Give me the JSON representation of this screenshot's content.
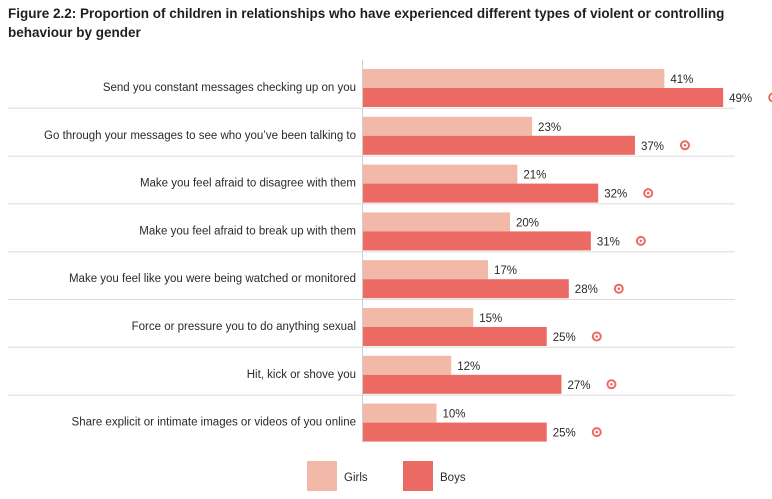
{
  "title": "Figure 2.2: Proportion of children in relationships who have experienced different types of violent or controlling behaviour by gender",
  "colors": {
    "girls": "#f2b8a8",
    "boys": "#eb6a63",
    "separator": "#dcdcdc",
    "axis": "#cfcfcf",
    "marker": "#eb6a63"
  },
  "chart_data": {
    "type": "bar",
    "orientation": "horizontal",
    "categories": [
      "Send you constant messages checking up on you",
      "Go through your messages to see who you’ve been talking to",
      "Make you feel afraid to disagree with them",
      "Make you feel afraid to break up with them",
      "Make you feel like you were being watched or monitored",
      "Force or pressure you to do anything sexual",
      "Hit, kick or shove you",
      "Share explicit or intimate images or videos of you online"
    ],
    "series": [
      {
        "name": "Girls",
        "values": [
          41,
          23,
          21,
          20,
          17,
          15,
          12,
          10
        ],
        "labels": [
          "41%",
          "23%",
          "21%",
          "20%",
          "17%",
          "15%",
          "12%",
          "10%"
        ]
      },
      {
        "name": "Boys",
        "values": [
          49,
          37,
          32,
          31,
          28,
          25,
          27,
          25
        ],
        "labels": [
          "49%",
          "37%",
          "32%",
          "31%",
          "28%",
          "25%",
          "27%",
          "25%"
        ],
        "marker": "circle-icon"
      }
    ],
    "xlim": [
      0,
      50
    ],
    "legend": "bottom-center"
  }
}
